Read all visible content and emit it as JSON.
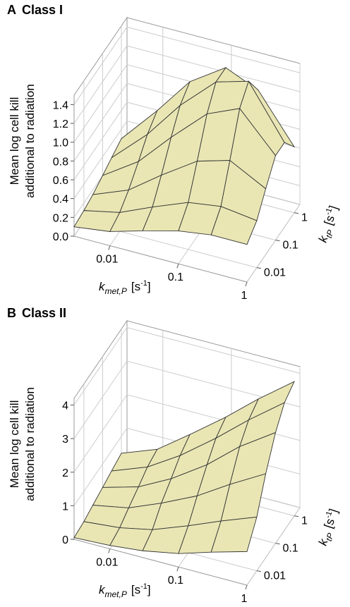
{
  "chart_data": [
    {
      "type": "surface",
      "panel": "A",
      "title": "Class I",
      "zlabel": [
        "Mean log cell kill",
        "additional to radiation"
      ],
      "xlabel": {
        "symbol": "k",
        "subscript": "met,P",
        "unit": "[s",
        "superscript": "-1",
        "unit_end": "]"
      },
      "ylabel": {
        "symbol": "k",
        "subscript": "tP",
        "unit": "[s",
        "superscript": "-1",
        "unit_end": "]"
      },
      "xscale": "log",
      "yscale": "log",
      "xlim": [
        0.003,
        1
      ],
      "ylim": [
        0.003,
        2
      ],
      "zlim": [
        0,
        1.5
      ],
      "xticks": [
        0.01,
        0.1,
        1
      ],
      "yticks": [
        0.01,
        0.1,
        1
      ],
      "zticks": [
        {
          "value": 0,
          "label": "0.0"
        },
        0.2,
        0.4,
        0.6,
        0.8,
        {
          "value": 1,
          "label": "1.0"
        },
        1.2,
        1.4
      ],
      "color": "#e9e6b4",
      "grid": true,
      "x": [
        0.003,
        0.01,
        0.03,
        0.1,
        0.3,
        1
      ],
      "y": [
        0.003,
        0.01,
        0.03,
        0.1,
        0.3,
        1
      ],
      "z": [
        [
          0.1,
          0.15,
          0.25,
          0.35,
          0.4,
          0.4
        ],
        [
          0.12,
          0.2,
          0.35,
          0.5,
          0.55,
          0.5
        ],
        [
          0.15,
          0.3,
          0.55,
          0.8,
          0.9,
          0.7
        ],
        [
          0.2,
          0.45,
          0.8,
          1.15,
          1.3,
          0.9
        ],
        [
          0.25,
          0.6,
          1.0,
          1.35,
          1.45,
          0.9
        ],
        [
          0.3,
          0.7,
          1.1,
          1.35,
          1.2,
          0.7
        ]
      ]
    },
    {
      "type": "surface",
      "panel": "B",
      "title": "Class II",
      "zlabel": [
        "Mean log cell kill",
        "additional to radiation"
      ],
      "xlabel": {
        "symbol": "k",
        "subscript": "met,P",
        "unit": "[s",
        "superscript": "-1",
        "unit_end": "]"
      },
      "ylabel": {
        "symbol": "k",
        "subscript": "tP",
        "unit": "[s",
        "superscript": "-1",
        "unit_end": "]"
      },
      "xscale": "log",
      "yscale": "log",
      "xlim": [
        0.003,
        1
      ],
      "ylim": [
        0.003,
        2
      ],
      "zlim": [
        0,
        4.2
      ],
      "xticks": [
        0.01,
        0.1,
        1
      ],
      "yticks": [
        0.01,
        0.1,
        1
      ],
      "zticks": [
        0,
        1,
        2,
        3,
        4
      ],
      "color": "#e9e6b4",
      "grid": true,
      "x": [
        0.003,
        0.01,
        0.03,
        0.1,
        0.3,
        1
      ],
      "y": [
        0.003,
        0.01,
        0.03,
        0.1,
        0.3,
        1
      ],
      "z": [
        [
          0.05,
          0.1,
          0.2,
          0.4,
          0.7,
          1.0
        ],
        [
          0.1,
          0.2,
          0.4,
          0.8,
          1.2,
          1.6
        ],
        [
          0.2,
          0.4,
          0.8,
          1.3,
          1.9,
          2.5
        ],
        [
          0.3,
          0.6,
          1.1,
          1.8,
          2.6,
          3.3
        ],
        [
          0.4,
          0.8,
          1.4,
          2.2,
          3.0,
          3.8
        ],
        [
          0.5,
          0.9,
          1.6,
          2.4,
          3.2,
          4.0
        ]
      ]
    }
  ]
}
